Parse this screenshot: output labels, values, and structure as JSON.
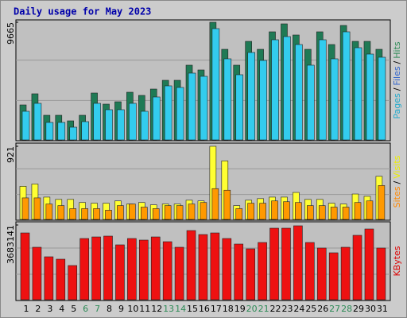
{
  "chart_data": {
    "type": "bar",
    "title": "Daily usage for May 2023",
    "categories": [
      "1",
      "2",
      "3",
      "4",
      "5",
      "6",
      "7",
      "8",
      "9",
      "10",
      "11",
      "12",
      "13",
      "14",
      "15",
      "16",
      "17",
      "18",
      "19",
      "20",
      "21",
      "22",
      "23",
      "24",
      "25",
      "26",
      "27",
      "28",
      "29",
      "30",
      "31"
    ],
    "highlight_categories": [
      "6",
      "7",
      "13",
      "14",
      "20",
      "21",
      "27",
      "28"
    ],
    "highlight_color": "#2e8b57",
    "legend_separator": "/",
    "panels": [
      {
        "ylim": [
          0,
          9665
        ],
        "yticks": [
          9665
        ],
        "series": [
          {
            "name": "Pages",
            "color": "#33ccee",
            "label_color": "#22aacc",
            "values": [
              2351,
              3004,
              1437,
              1437,
              1045,
              1502,
              3004,
              2482,
              2482,
              3004,
              2351,
              3527,
              4441,
              4310,
              5486,
              5225,
              9143,
              6662,
              5355,
              7183,
              6531,
              8228,
              8489,
              7836,
              6139,
              8228,
              6662,
              8881,
              7575,
              7052,
              6792
            ]
          },
          {
            "name": "Files",
            "color": "#3366cc",
            "label_color": "#3366cc",
            "values": [
              null,
              null,
              null,
              null,
              null,
              null,
              null,
              null,
              null,
              null,
              null,
              null,
              null,
              null,
              null,
              null,
              null,
              null,
              null,
              null,
              null,
              null,
              null,
              null,
              null,
              null,
              null,
              null,
              null,
              null,
              null
            ]
          },
          {
            "name": "Hits",
            "color": "#1f7a55",
            "label_color": "#2e8b57",
            "values": [
              2874,
              3788,
              2025,
              2025,
              1567,
              2025,
              3853,
              2939,
              3135,
              3918,
              3657,
              4179,
              4898,
              4898,
              6139,
              5747,
              9665,
              7444,
              6139,
              8097,
              7444,
              8881,
              9534,
              8620,
              7444,
              8881,
              7836,
              9403,
              8097,
              8097,
              7444
            ]
          }
        ]
      },
      {
        "ylim": [
          0,
          921
        ],
        "yticks": [
          921
        ],
        "series": [
          {
            "name": "Sites",
            "color": "#ff9900",
            "label_color": "#ff8800",
            "values": [
              271,
              271,
              194,
              174,
              136,
              136,
              136,
              116,
              174,
              194,
              155,
              136,
              174,
              174,
              194,
              213,
              388,
              368,
              136,
              204,
              204,
              233,
              223,
              213,
              174,
              174,
              155,
              155,
              213,
              233,
              427
            ]
          },
          {
            "name": "Visits",
            "color": "#ffff33",
            "label_color": "#eeee00",
            "values": [
              417,
              446,
              281,
              252,
              252,
              213,
              204,
              204,
              233,
              194,
              213,
              184,
              194,
              194,
              242,
              233,
              921,
              737,
              174,
              242,
              262,
              281,
              281,
              340,
              252,
              252,
              204,
              194,
              320,
              291,
              543
            ]
          }
        ]
      },
      {
        "ylim": [
          0,
          3683141
        ],
        "yticks": [
          3683141
        ],
        "series": [
          {
            "name": "KBytes",
            "color": "#ee1111",
            "label_color": "#dd0000",
            "values": [
              3291000,
              2586000,
              2116000,
              1998000,
              1685000,
              3017000,
              3095000,
              3135000,
              2704000,
              3017000,
              2939000,
              3095000,
              2860000,
              2586000,
              3409000,
              3213000,
              3291000,
              3017000,
              2743000,
              2508000,
              2821000,
              3526000,
              3526000,
              3644000,
              2821000,
              2547000,
              2312000,
              2586000,
              3174000,
              3487000,
              2547000
            ]
          }
        ]
      }
    ]
  }
}
